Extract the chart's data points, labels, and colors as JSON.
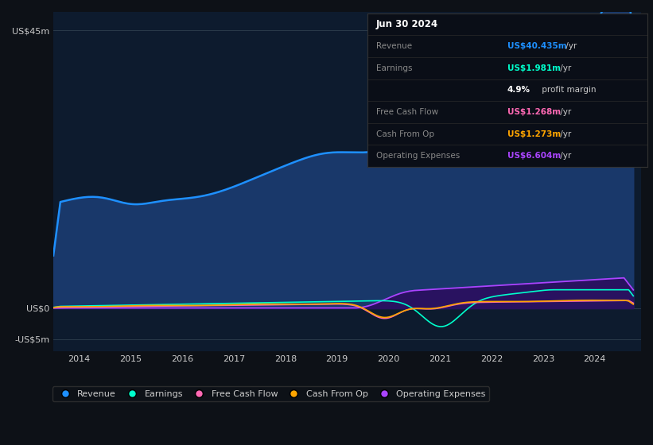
{
  "background_color": "#0d1117",
  "plot_bg_color": "#0d1b2e",
  "info_box_bg": "#0a0e17",
  "info_box_border": "#333333",
  "ylim": [
    -7,
    48
  ],
  "yticks": [
    -5,
    0,
    45
  ],
  "ytick_labels": [
    "-US$5m",
    "US$0",
    "US$45m"
  ],
  "xticks": [
    2014,
    2015,
    2016,
    2017,
    2018,
    2019,
    2020,
    2021,
    2022,
    2023,
    2024
  ],
  "series": {
    "revenue": {
      "color": "#1e90ff",
      "fill_color": "#1a3a6e",
      "label": "Revenue"
    },
    "earnings": {
      "color": "#00ffcc",
      "label": "Earnings"
    },
    "free_cash_flow": {
      "color": "#ff69b4",
      "label": "Free Cash Flow"
    },
    "cash_from_op": {
      "color": "#ffa500",
      "label": "Cash From Op"
    },
    "operating_expenses": {
      "color": "#aa44ff",
      "fill_color": "#2a1060",
      "label": "Operating Expenses"
    }
  },
  "legend": [
    {
      "label": "Revenue",
      "color": "#1e90ff"
    },
    {
      "label": "Earnings",
      "color": "#00ffcc"
    },
    {
      "label": "Free Cash Flow",
      "color": "#ff69b4"
    },
    {
      "label": "Cash From Op",
      "color": "#ffa500"
    },
    {
      "label": "Operating Expenses",
      "color": "#aa44ff"
    }
  ],
  "info_rows": [
    {
      "label": "Jun 30 2024",
      "value": "",
      "label_color": "#ffffff",
      "value_color": "#ffffff",
      "is_title": true
    },
    {
      "label": "Revenue",
      "value": "US$40.435m",
      "value_color": "#1e90ff",
      "label_color": "#888888",
      "is_title": false
    },
    {
      "label": "Earnings",
      "value": "US$1.981m",
      "value_color": "#00ffcc",
      "label_color": "#888888",
      "is_title": false
    },
    {
      "label": "",
      "value": "4.9%",
      "value_color": "#ffffff",
      "label_color": "#888888",
      "is_title": false,
      "suffix": " profit margin"
    },
    {
      "label": "Free Cash Flow",
      "value": "US$1.268m",
      "value_color": "#ff69b4",
      "label_color": "#888888",
      "is_title": false
    },
    {
      "label": "Cash From Op",
      "value": "US$1.273m",
      "value_color": "#ffa500",
      "label_color": "#888888",
      "is_title": false
    },
    {
      "label": "Operating Expenses",
      "value": "US$6.604m",
      "value_color": "#aa44ff",
      "label_color": "#888888",
      "is_title": false
    }
  ]
}
